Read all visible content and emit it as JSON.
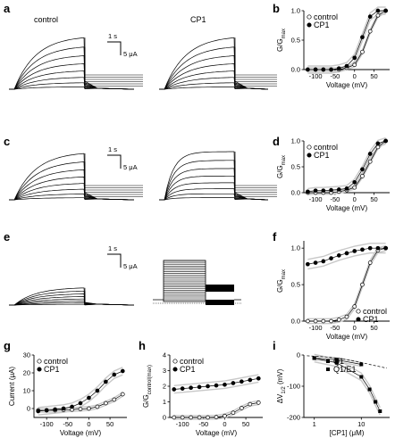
{
  "panels": {
    "a": {
      "letter": "a",
      "left": "control",
      "right": "CP1",
      "scale_t": "1 s",
      "scale_i": "5 μA",
      "kinds": [
        "act",
        "act",
        "none"
      ]
    },
    "c": {
      "letter": "c",
      "scale_t": "1 s",
      "scale_i": "5 μA",
      "kinds": [
        "act",
        "actfast",
        "none"
      ]
    },
    "e": {
      "letter": "e",
      "scale_t": "1 s",
      "scale_i": "5 μA",
      "kinds": [
        "small",
        "box",
        "box"
      ]
    }
  },
  "chart_data": [
    {
      "panel": "b",
      "type": "scatter",
      "xlabel": "Voltage (mV)",
      "ylabel": "G/G",
      "ylabel_sub": "max",
      "xlim": [
        -130,
        90
      ],
      "ylim": [
        0,
        1
      ],
      "xticks": [
        "-100",
        "-50",
        "0",
        "50"
      ],
      "yticks": [
        "0.0",
        "0.5",
        "1.0"
      ],
      "legend": [
        "control",
        "CP1"
      ],
      "series": [
        {
          "name": "control",
          "x": [
            -120,
            -100,
            -80,
            -60,
            -40,
            -20,
            0,
            20,
            40,
            60,
            80
          ],
          "y": [
            0,
            0,
            0,
            0,
            0,
            0.03,
            0.08,
            0.3,
            0.65,
            0.92,
            1.0
          ]
        },
        {
          "name": "CP1",
          "x": [
            -120,
            -100,
            -80,
            -60,
            -40,
            -20,
            0,
            20,
            40,
            60,
            80
          ],
          "y": [
            0,
            0,
            0,
            0,
            0.02,
            0.06,
            0.2,
            0.55,
            0.9,
            1.0,
            1.0
          ]
        }
      ]
    },
    {
      "panel": "d",
      "type": "scatter",
      "xlabel": "Voltage (mV)",
      "ylabel": "G/G",
      "ylabel_sub": "max",
      "xlim": [
        -130,
        90
      ],
      "ylim": [
        0,
        1
      ],
      "xticks": [
        "-100",
        "-50",
        "0",
        "50"
      ],
      "yticks": [
        "0.0",
        "0.5",
        "1.0"
      ],
      "legend": [
        "control",
        "CP1"
      ],
      "series": [
        {
          "name": "control",
          "x": [
            -120,
            -100,
            -80,
            -60,
            -40,
            -20,
            0,
            20,
            40,
            60,
            80
          ],
          "y": [
            0,
            0,
            0,
            0,
            0.02,
            0.05,
            0.1,
            0.32,
            0.6,
            0.88,
            1.0
          ]
        },
        {
          "name": "CP1",
          "x": [
            -120,
            -100,
            -80,
            -60,
            -40,
            -20,
            0,
            20,
            40,
            60,
            80
          ],
          "y": [
            0.02,
            0.04,
            0.04,
            0.05,
            0.06,
            0.08,
            0.2,
            0.45,
            0.75,
            0.95,
            1.0
          ]
        }
      ]
    },
    {
      "panel": "f",
      "type": "scatter",
      "xlabel": "Voltage (mV)",
      "ylabel": "G/G",
      "ylabel_sub": "max",
      "xlim": [
        -130,
        90
      ],
      "ylim": [
        0,
        1.1
      ],
      "xticks": [
        "-100",
        "-50",
        "0",
        "50"
      ],
      "yticks": [
        "0.0",
        "0.5",
        "1.0"
      ],
      "legend": [
        "control",
        "CP1"
      ],
      "legend_pos": "bottom-right",
      "series": [
        {
          "name": "control",
          "x": [
            -120,
            -100,
            -80,
            -60,
            -40,
            -20,
            0,
            20,
            40,
            60,
            80
          ],
          "y": [
            0,
            0,
            0,
            0,
            0.02,
            0.06,
            0.2,
            0.5,
            0.8,
            0.97,
            1.0
          ]
        },
        {
          "name": "CP1",
          "x": [
            -120,
            -100,
            -80,
            -60,
            -40,
            -20,
            0,
            20,
            40,
            60,
            80
          ],
          "y": [
            0.78,
            0.8,
            0.82,
            0.86,
            0.9,
            0.93,
            0.96,
            0.98,
            1.0,
            1.0,
            1.0
          ]
        }
      ]
    },
    {
      "panel": "g",
      "type": "scatter",
      "xlabel": "Voltage (mV)",
      "ylabel": "Current (μA)",
      "xlim": [
        -130,
        90
      ],
      "ylim": [
        -5,
        30
      ],
      "xticks": [
        "-100",
        "-50",
        "0",
        "50"
      ],
      "yticks": [
        "0",
        "10",
        "20",
        "30"
      ],
      "legend": [
        "control",
        "CP1"
      ],
      "series": [
        {
          "name": "control",
          "x": [
            -120,
            -100,
            -80,
            -60,
            -40,
            -20,
            0,
            20,
            40,
            60,
            80
          ],
          "y": [
            -1,
            -1,
            -1,
            -0.8,
            -0.6,
            -0.3,
            0,
            1,
            3,
            5,
            8
          ]
        },
        {
          "name": "CP1",
          "x": [
            -120,
            -100,
            -80,
            -60,
            -40,
            -20,
            0,
            20,
            40,
            60,
            80
          ],
          "y": [
            -1.5,
            -1,
            -0.5,
            0,
            1,
            3,
            6,
            10,
            15,
            19,
            21
          ]
        }
      ]
    },
    {
      "panel": "h",
      "type": "scatter",
      "xlabel": "Voltage (mV)",
      "ylabel": "G/G",
      "ylabel_sub": "control(max)",
      "xlim": [
        -130,
        90
      ],
      "ylim": [
        0,
        4
      ],
      "xticks": [
        "-100",
        "-50",
        "0",
        "50"
      ],
      "yticks": [
        "0",
        "1",
        "2",
        "3",
        "4"
      ],
      "legend": [
        "control",
        "CP1"
      ],
      "series": [
        {
          "name": "control",
          "x": [
            -120,
            -100,
            -80,
            -60,
            -40,
            -20,
            0,
            20,
            40,
            60,
            80
          ],
          "y": [
            0,
            0,
            0,
            0,
            0,
            0.02,
            0.1,
            0.3,
            0.6,
            0.85,
            0.95
          ]
        },
        {
          "name": "CP1",
          "x": [
            -120,
            -100,
            -80,
            -60,
            -40,
            -20,
            0,
            20,
            40,
            60,
            80
          ],
          "y": [
            1.8,
            1.85,
            1.9,
            1.95,
            2.0,
            2.05,
            2.1,
            2.2,
            2.3,
            2.4,
            2.5
          ]
        }
      ]
    },
    {
      "panel": "i",
      "type": "scatter",
      "xlabel": "[CP1] (μM)",
      "ylabel": "ΔV",
      "ylabel_sub": "1/2",
      "ylabel_suffix": " (mV)",
      "xlim_log": [
        0.6,
        40
      ],
      "ylim": [
        -200,
        0
      ],
      "xticks": [
        "1",
        "10"
      ],
      "yticks": [
        "0",
        "-100",
        "-200"
      ],
      "legend": [
        "Q1",
        "Q1/E1"
      ],
      "series": [
        {
          "name": "Q1",
          "x": [
            1,
            3,
            10
          ],
          "y": [
            -10,
            -15,
            -30
          ]
        },
        {
          "name": "Q1/E1",
          "x": [
            1,
            3,
            10,
            15,
            20,
            25
          ],
          "y": [
            -10,
            -25,
            -70,
            -110,
            -150,
            -180
          ]
        }
      ]
    }
  ]
}
